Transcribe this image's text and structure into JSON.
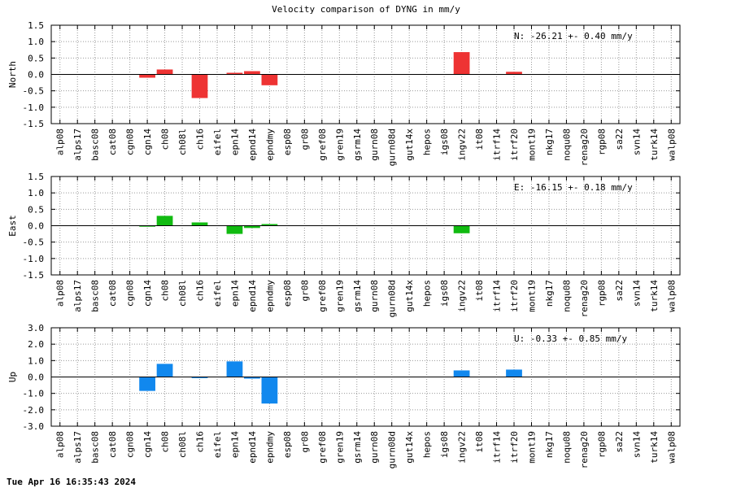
{
  "title": "Velocity comparison of DYNG in mm/y",
  "timestamp": "Tue Apr 16 16:35:43 2024",
  "chart_data": [
    {
      "type": "bar",
      "ylabel": "North",
      "ylim": [
        -1.5,
        1.5
      ],
      "yticks": [
        "1.5",
        "1.0",
        "0.5",
        "0.0",
        "-0.5",
        "-1.0",
        "-1.5"
      ],
      "annotation": "N: -26.21 +-  0.40 mm/y",
      "color": "#ee3333",
      "grid": true,
      "categories": [
        "alp08",
        "alps17",
        "basc08",
        "cat08",
        "cgn08",
        "cgn14",
        "ch08",
        "ch08l",
        "ch16",
        "eifel",
        "epn14",
        "epnd14",
        "epndmy",
        "esp08",
        "gr08",
        "gref08",
        "gren19",
        "gsrm14",
        "gurn08",
        "gurn08d",
        "gut14x",
        "hepos",
        "igs08",
        "ingv22",
        "it08",
        "itrf14",
        "itrf20",
        "mont19",
        "nkg17",
        "noqu08",
        "renag20",
        "rgp08",
        "sa22",
        "svn14",
        "turk14",
        "walp08"
      ],
      "values": [
        0,
        0,
        0,
        0,
        0,
        -0.1,
        0.15,
        0,
        -0.72,
        0,
        0.05,
        0.1,
        -0.33,
        0,
        0,
        0,
        0,
        0,
        0,
        0,
        0,
        0,
        0,
        0.68,
        0,
        0,
        0.08,
        0,
        0,
        0,
        0,
        0,
        0,
        0,
        0,
        0
      ]
    },
    {
      "type": "bar",
      "ylabel": "East",
      "ylim": [
        -1.5,
        1.5
      ],
      "yticks": [
        "1.5",
        "1.0",
        "0.5",
        "0.0",
        "-0.5",
        "-1.0",
        "-1.5"
      ],
      "annotation": "E: -16.15 +-  0.18 mm/y",
      "color": "#11bb11",
      "grid": true,
      "categories": [
        "alp08",
        "alps17",
        "basc08",
        "cat08",
        "cgn08",
        "cgn14",
        "ch08",
        "ch08l",
        "ch16",
        "eifel",
        "epn14",
        "epnd14",
        "epndmy",
        "esp08",
        "gr08",
        "gref08",
        "gren19",
        "gsrm14",
        "gurn08",
        "gurn08d",
        "gut14x",
        "hepos",
        "igs08",
        "ingv22",
        "it08",
        "itrf14",
        "itrf20",
        "mont19",
        "nkg17",
        "noqu08",
        "renag20",
        "rgp08",
        "sa22",
        "svn14",
        "turk14",
        "walp08"
      ],
      "values": [
        0,
        0,
        0,
        0,
        0,
        -0.03,
        0.3,
        0,
        0.1,
        0,
        -0.25,
        -0.07,
        0.05,
        0,
        0,
        0,
        0,
        0,
        0,
        0,
        0,
        0,
        0,
        -0.23,
        0,
        0,
        0,
        0,
        0,
        0,
        0,
        0,
        0,
        0,
        0,
        0
      ]
    },
    {
      "type": "bar",
      "ylabel": "Up",
      "ylim": [
        -3.0,
        3.0
      ],
      "yticks": [
        "3.0",
        "2.0",
        "1.0",
        "0.0",
        "-1.0",
        "-2.0",
        "-3.0"
      ],
      "annotation": "U:  -0.33 +-  0.85 mm/y",
      "color": "#1188ee",
      "grid": true,
      "categories": [
        "alp08",
        "alps17",
        "basc08",
        "cat08",
        "cgn08",
        "cgn14",
        "ch08",
        "ch08l",
        "ch16",
        "eifel",
        "epn14",
        "epnd14",
        "epndmy",
        "esp08",
        "gr08",
        "gref08",
        "gren19",
        "gsrm14",
        "gurn08",
        "gurn08d",
        "gut14x",
        "hepos",
        "igs08",
        "ingv22",
        "it08",
        "itrf14",
        "itrf20",
        "mont19",
        "nkg17",
        "noqu08",
        "renag20",
        "rgp08",
        "sa22",
        "svn14",
        "turk14",
        "walp08"
      ],
      "values": [
        0,
        0,
        0,
        0,
        0,
        -0.85,
        0.8,
        0,
        -0.07,
        0,
        0.95,
        -0.1,
        -1.62,
        0,
        0,
        0,
        0,
        0,
        0,
        0,
        0,
        0,
        0,
        0.4,
        0,
        0,
        0.45,
        0,
        0,
        0,
        0,
        0,
        0,
        0,
        0,
        0
      ]
    }
  ]
}
